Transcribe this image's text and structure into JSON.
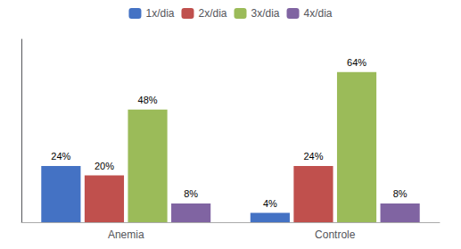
{
  "chart_data": {
    "type": "bar",
    "categories": [
      "Anemia",
      "Controle"
    ],
    "series": [
      {
        "name": "1x/dia",
        "color": "#4472C4",
        "values": [
          24,
          4
        ],
        "value_labels": [
          "24%",
          "4%"
        ]
      },
      {
        "name": "2x/dia",
        "color": "#C0504D",
        "values": [
          20,
          24
        ],
        "value_labels": [
          "20%",
          "24%"
        ]
      },
      {
        "name": "3x/dia",
        "color": "#9BBB59",
        "values": [
          48,
          64
        ],
        "value_labels": [
          "48%",
          "64%"
        ]
      },
      {
        "name": "4x/dia",
        "color": "#8064A2",
        "values": [
          8,
          8
        ],
        "value_labels": [
          "8%",
          "8%"
        ]
      }
    ],
    "ylim": [
      0,
      78
    ],
    "grid": false,
    "legend": "top",
    "data_labels": true,
    "tick_labels": "x"
  }
}
